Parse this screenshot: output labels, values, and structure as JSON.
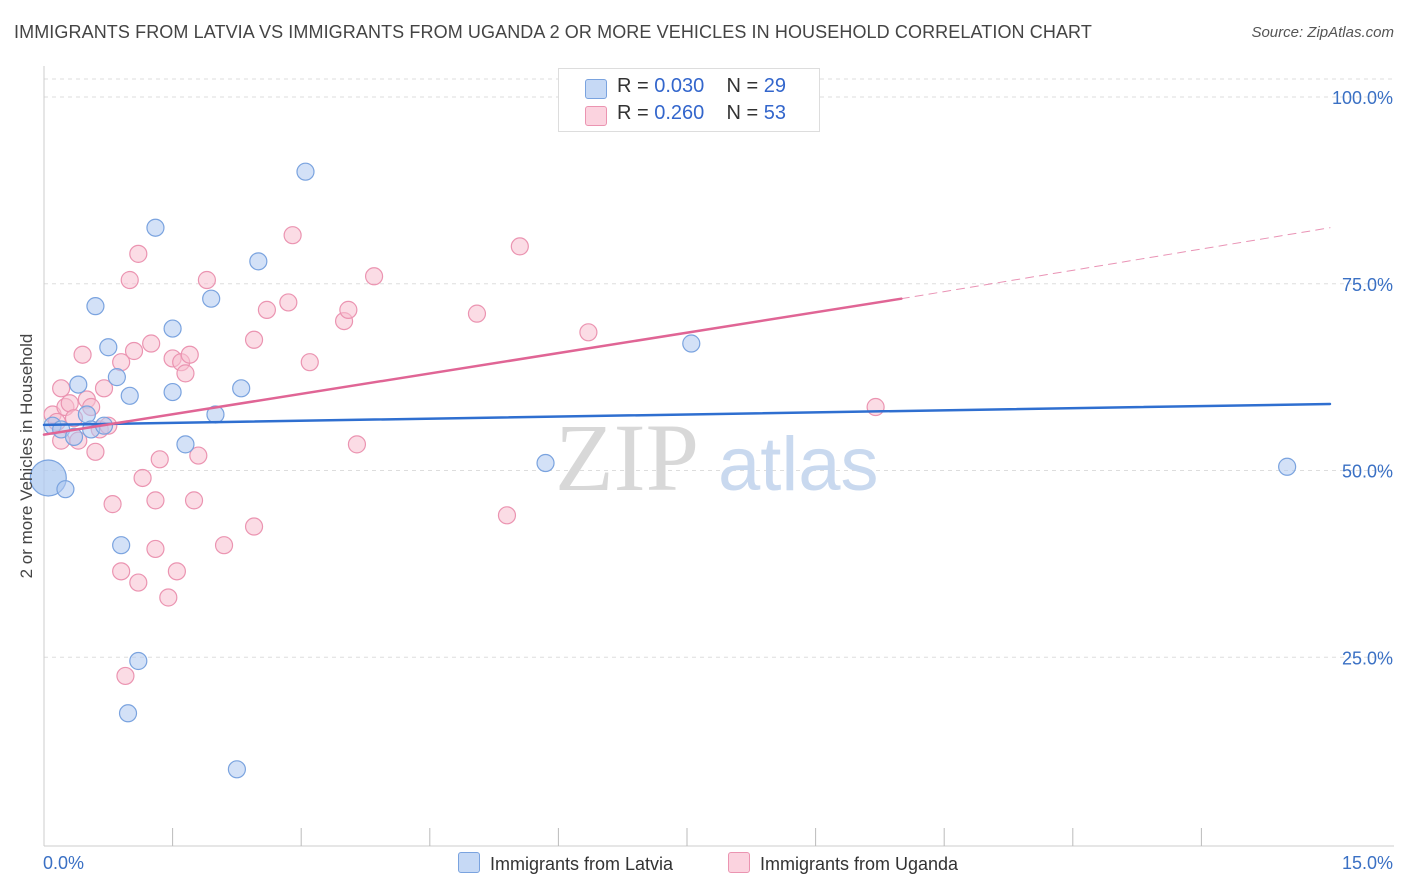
{
  "title": "IMMIGRANTS FROM LATVIA VS IMMIGRANTS FROM UGANDA 2 OR MORE VEHICLES IN HOUSEHOLD CORRELATION CHART",
  "source": "Source: ZipAtlas.com",
  "watermark": {
    "zip": "ZIP",
    "atlas": "atlas"
  },
  "legend": {
    "latvia": {
      "r_label": "R = ",
      "r_value": "0.030",
      "n_label": "N = ",
      "n_value": "29"
    },
    "uganda": {
      "r_label": "R = ",
      "r_value": "0.260",
      "n_label": "N = ",
      "n_value": "53"
    }
  },
  "colors": {
    "latvia_fill": "#aec9f0",
    "latvia_stroke": "#7aa3df",
    "latvia_line": "#2f6fd0",
    "uganda_fill": "#f7bfd0",
    "uganda_stroke": "#eb94b1",
    "uganda_line": "#e06595",
    "tick_label": "#3a70c4",
    "grid": "#dddddd"
  },
  "chart_data": {
    "type": "scatter",
    "xlabel": "",
    "ylabel": "2 or more Vehicles in Household",
    "xlim": [
      0,
      15
    ],
    "ylim": [
      0,
      103
    ],
    "x_tick_labels": [
      {
        "value": 0,
        "label": "0.0%"
      },
      {
        "value": 15,
        "label": "15.0%"
      }
    ],
    "y_tick_labels": [
      {
        "value": 25,
        "label": "25.0%"
      },
      {
        "value": 50,
        "label": "50.0%"
      },
      {
        "value": 75,
        "label": "75.0%"
      },
      {
        "value": 100,
        "label": "100.0%"
      }
    ],
    "x_minor_ticks": [
      1.5,
      3.0,
      4.5,
      6.0,
      7.5,
      9.0,
      10.5,
      12.0,
      13.5
    ],
    "grid": true,
    "legend_position": "top-center",
    "series": [
      {
        "name": "Immigrants from Latvia",
        "color": "#aec9f0",
        "points": [
          [
            0.05,
            49.0
          ],
          [
            0.1,
            56.0
          ],
          [
            0.2,
            55.5
          ],
          [
            0.25,
            47.5
          ],
          [
            0.35,
            54.5
          ],
          [
            0.4,
            61.5
          ],
          [
            0.5,
            57.5
          ],
          [
            0.55,
            55.5
          ],
          [
            0.6,
            72.0
          ],
          [
            0.7,
            56.0
          ],
          [
            0.75,
            66.5
          ],
          [
            0.85,
            62.5
          ],
          [
            0.9,
            40.0
          ],
          [
            1.0,
            60.0
          ],
          [
            1.1,
            24.5
          ],
          [
            0.98,
            17.5
          ],
          [
            1.3,
            82.5
          ],
          [
            1.5,
            69.0
          ],
          [
            1.5,
            60.5
          ],
          [
            1.65,
            53.5
          ],
          [
            1.95,
            73.0
          ],
          [
            2.0,
            57.5
          ],
          [
            2.3,
            61.0
          ],
          [
            2.25,
            10.0
          ],
          [
            2.5,
            78.0
          ],
          [
            3.05,
            90.0
          ],
          [
            5.85,
            51.0
          ],
          [
            7.55,
            67.0
          ],
          [
            14.5,
            50.5
          ]
        ]
      },
      {
        "name": "Immigrants from Uganda",
        "color": "#f7bfd0",
        "points": [
          [
            0.1,
            57.5
          ],
          [
            0.2,
            61.0
          ],
          [
            0.25,
            58.5
          ],
          [
            0.3,
            59.0
          ],
          [
            0.35,
            57.0
          ],
          [
            0.4,
            54.0
          ],
          [
            0.45,
            65.5
          ],
          [
            0.5,
            59.5
          ],
          [
            0.55,
            58.5
          ],
          [
            0.6,
            52.5
          ],
          [
            0.65,
            55.5
          ],
          [
            0.7,
            61.0
          ],
          [
            0.75,
            56.0
          ],
          [
            0.8,
            45.5
          ],
          [
            0.9,
            64.5
          ],
          [
            0.9,
            36.5
          ],
          [
            0.95,
            22.5
          ],
          [
            1.0,
            75.5
          ],
          [
            1.05,
            66.0
          ],
          [
            1.1,
            79.0
          ],
          [
            1.1,
            35.0
          ],
          [
            1.15,
            49.0
          ],
          [
            1.25,
            67.0
          ],
          [
            1.3,
            39.5
          ],
          [
            1.3,
            46.0
          ],
          [
            1.35,
            51.5
          ],
          [
            1.45,
            33.0
          ],
          [
            1.5,
            65.0
          ],
          [
            1.55,
            36.5
          ],
          [
            1.6,
            64.5
          ],
          [
            1.65,
            63.0
          ],
          [
            1.7,
            65.5
          ],
          [
            1.75,
            46.0
          ],
          [
            1.8,
            52.0
          ],
          [
            1.9,
            75.5
          ],
          [
            2.1,
            40.0
          ],
          [
            2.45,
            67.5
          ],
          [
            2.45,
            42.5
          ],
          [
            2.6,
            71.5
          ],
          [
            2.85,
            72.5
          ],
          [
            2.9,
            81.5
          ],
          [
            3.1,
            64.5
          ],
          [
            3.5,
            70.0
          ],
          [
            3.55,
            71.5
          ],
          [
            3.65,
            53.5
          ],
          [
            3.85,
            76.0
          ],
          [
            5.05,
            71.0
          ],
          [
            5.4,
            44.0
          ],
          [
            5.55,
            80.0
          ],
          [
            6.35,
            68.5
          ],
          [
            9.7,
            58.5
          ],
          [
            0.15,
            56.5
          ],
          [
            0.2,
            54.0
          ]
        ]
      }
    ],
    "trend_lines": [
      {
        "series": "Immigrants from Latvia",
        "x": [
          0,
          15
        ],
        "y": [
          56.1,
          58.9
        ],
        "style": "solid"
      },
      {
        "series": "Immigrants from Uganda",
        "x": [
          0,
          10.0
        ],
        "y": [
          54.8,
          73.0
        ],
        "style": "solid"
      },
      {
        "series": "Immigrants from Uganda",
        "x": [
          10.0,
          15
        ],
        "y": [
          73.0,
          82.5
        ],
        "style": "dashed"
      }
    ]
  },
  "bottom_legend": {
    "latvia_label": "Immigrants from Latvia",
    "uganda_label": "Immigrants from Uganda"
  }
}
